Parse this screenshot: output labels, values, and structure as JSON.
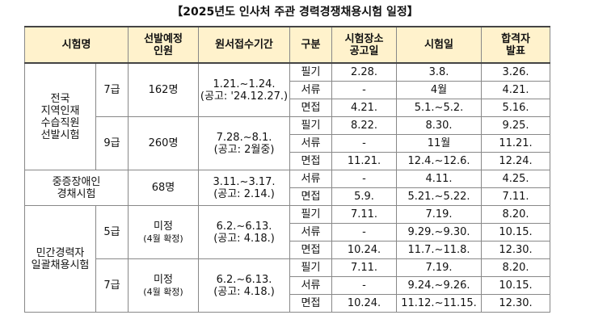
{
  "title": "【2025년도 인사처 주관 경력경쟁채용시험 일정】",
  "header": [
    [
      "시험명"
    ],
    [
      "선발예정",
      "인원"
    ],
    [
      "원서접수기간"
    ],
    [
      "구분"
    ],
    [
      "시험장소",
      "공고일"
    ],
    [
      "시험일"
    ],
    [
      "합격자",
      "발표"
    ]
  ],
  "groups": [
    {
      "name": [
        "전국",
        "지역인재",
        "수습직원",
        "선발시험"
      ],
      "tracks": [
        {
          "grade": "7급",
          "count": [
            "162명"
          ],
          "period": [
            "1.21.~1.24.",
            "(공고: '24.12.27.)"
          ],
          "rows": [
            [
              "필기",
              "2.28.",
              "3.8.",
              "3.26."
            ],
            [
              "서류",
              "-",
              "4월",
              "4.21."
            ],
            [
              "면접",
              "4.21.",
              "5.1.~5.2.",
              "5.16."
            ]
          ]
        },
        {
          "grade": "9급",
          "count": [
            "260명"
          ],
          "period": [
            "7.28.~8.1.",
            "(공고: 2월중)"
          ],
          "rows": [
            [
              "필기",
              "8.22.",
              "8.30.",
              "9.25."
            ],
            [
              "서류",
              "-",
              "11월",
              "11.21."
            ],
            [
              "면접",
              "11.21.",
              "12.4.~12.6.",
              "12.24."
            ]
          ]
        }
      ]
    },
    {
      "name": [
        "중증장애인",
        "경채시험"
      ],
      "tracks": [
        {
          "count": [
            "68명"
          ],
          "period": [
            "3.11.~3.17.",
            "(공고: 2.14.)"
          ],
          "rows": [
            [
              "서류",
              "-",
              "4.11.",
              "4.25."
            ],
            [
              "면접",
              "5.9.",
              "5.21.~5.22.",
              "7.11."
            ]
          ]
        }
      ]
    },
    {
      "name": [
        "민간경력자",
        "일괄채용시험"
      ],
      "tracks": [
        {
          "grade": "5급",
          "count": [
            "미정",
            "(4월 확정)"
          ],
          "period": [
            "6.2.~6.13.",
            "(공고: 4.18.)"
          ],
          "rows": [
            [
              "필기",
              "7.11.",
              "7.19.",
              "8.20."
            ],
            [
              "서류",
              "-",
              "9.29.~9.30.",
              "10.15."
            ],
            [
              "면접",
              "10.24.",
              "11.7.~11.8.",
              "12.30."
            ]
          ]
        },
        {
          "grade": "7급",
          "count": [
            "미정",
            "(4월 확정)"
          ],
          "period": [
            "6.2.~6.13.",
            "(공고: 4.18.)"
          ],
          "rows": [
            [
              "필기",
              "7.11.",
              "7.19.",
              "8.20."
            ],
            [
              "서류",
              "-",
              "9.24.~9.26.",
              "10.15."
            ],
            [
              "면접",
              "10.24.",
              "11.12.~11.15.",
              "12.30."
            ]
          ]
        }
      ]
    }
  ]
}
